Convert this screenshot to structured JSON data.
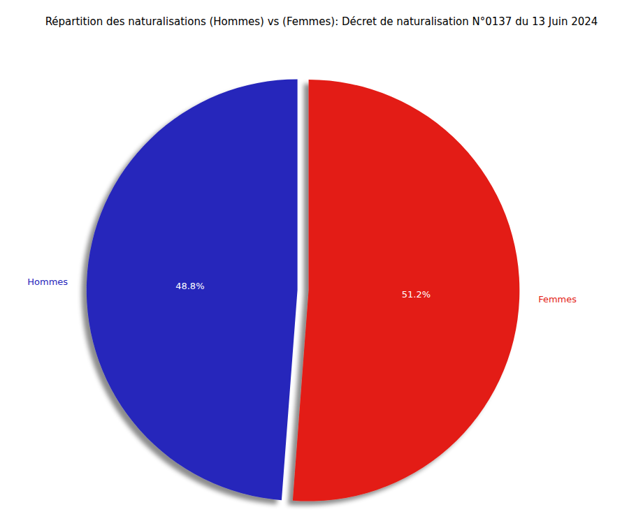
{
  "chart_data": {
    "type": "pie",
    "title": "Répartition des naturalisations (Hommes) vs (Femmes): Décret de naturalisation N°0137 du 13 Juin 2024",
    "categories": [
      "Hommes",
      "Femmes"
    ],
    "values": [
      48.8,
      51.2
    ],
    "value_labels": [
      "48.8%",
      "51.2%"
    ],
    "colors": [
      "#2626bb",
      "#e31c14"
    ],
    "data_labels": true
  }
}
